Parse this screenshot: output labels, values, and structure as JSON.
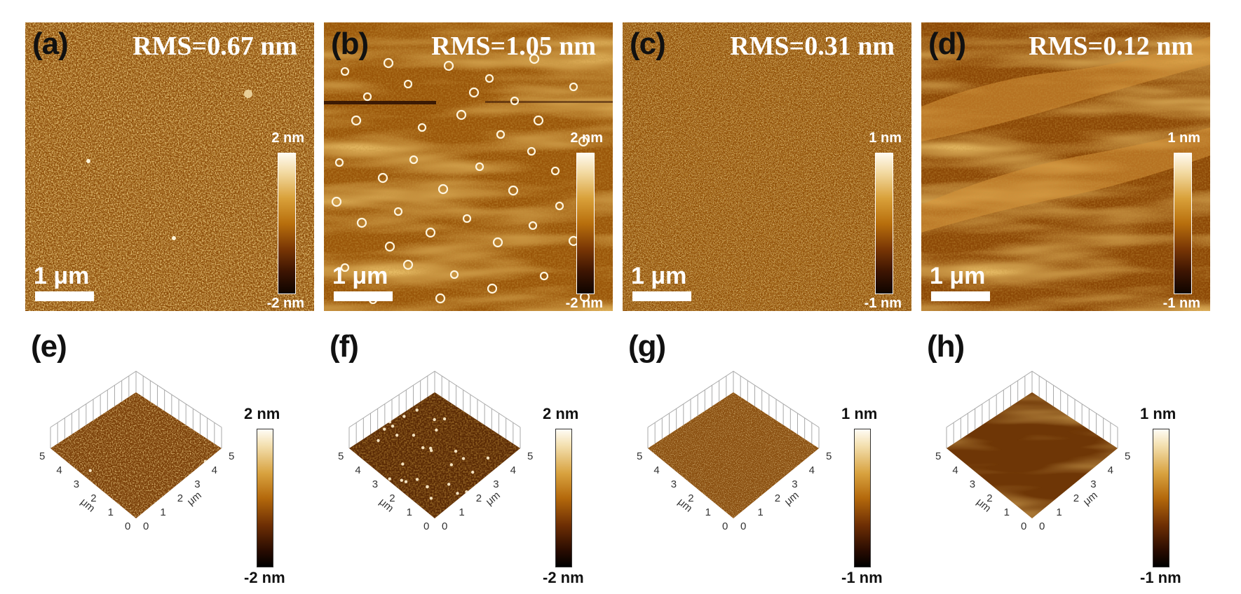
{
  "panels": [
    {
      "label": "(a)",
      "rms": "RMS=0.67 nm",
      "scale": "1 μm",
      "cmax": "2 nm",
      "cmin": "-2 nm"
    },
    {
      "label": "(b)",
      "rms": "RMS=1.05 nm",
      "scale": "1 μm",
      "cmax": "2 nm",
      "cmin": "-2 nm"
    },
    {
      "label": "(c)",
      "rms": "RMS=0.31 nm",
      "scale": "1 μm",
      "cmax": "1 nm",
      "cmin": "-1 nm"
    },
    {
      "label": "(d)",
      "rms": "RMS=0.12 nm",
      "scale": "1 μm",
      "cmax": "1 nm",
      "cmin": "-1 nm"
    }
  ],
  "views": [
    {
      "label": "(e)",
      "cmax": "2 nm",
      "cmin": "-2 nm"
    },
    {
      "label": "(f)",
      "cmax": "2 nm",
      "cmin": "-2 nm"
    },
    {
      "label": "(g)",
      "cmax": "1 nm",
      "cmin": "-1 nm"
    },
    {
      "label": "(h)",
      "cmax": "1 nm",
      "cmin": "-1 nm"
    }
  ],
  "axis": {
    "ticks": [
      "0",
      "1",
      "2",
      "3",
      "4",
      "5"
    ],
    "unit": "μm"
  }
}
